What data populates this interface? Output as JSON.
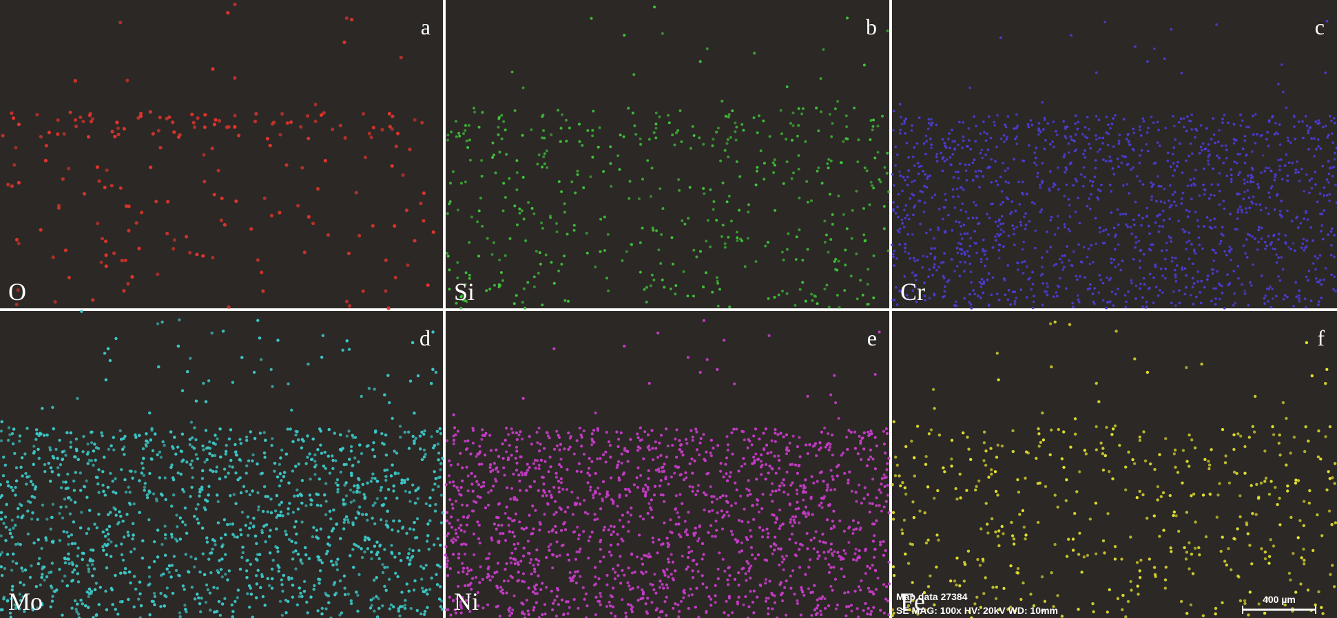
{
  "panels": [
    {
      "letter": "a",
      "element": "O"
    },
    {
      "letter": "b",
      "element": "Si"
    },
    {
      "letter": "c",
      "element": "Cr"
    },
    {
      "letter": "d",
      "element": "Mo"
    },
    {
      "letter": "e",
      "element": "Ni"
    },
    {
      "letter": "f",
      "element": "Fe"
    }
  ],
  "scale": {
    "line1": "Map data 27384",
    "line2": "SE  MAG: 100x  HV: 20kV  WD: 10mm",
    "bar": "400 µm"
  }
}
